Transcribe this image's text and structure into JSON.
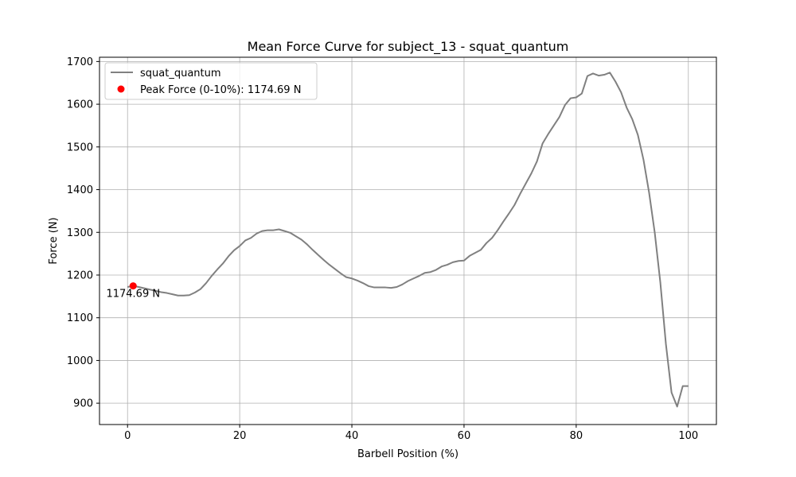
{
  "chart_data": {
    "type": "line",
    "title": "Mean Force Curve for subject_13 - squat_quantum",
    "xlabel": "Barbell Position (%)",
    "ylabel": "Force (N)",
    "xlim": [
      -5,
      105
    ],
    "ylim": [
      850,
      1710
    ],
    "xticks": [
      0,
      20,
      40,
      60,
      80,
      100
    ],
    "yticks": [
      900,
      1000,
      1100,
      1200,
      1300,
      1400,
      1500,
      1600,
      1700
    ],
    "grid": true,
    "legend_position": "top-left",
    "series": [
      {
        "name": "squat_quantum",
        "color": "#808080",
        "x": [
          0,
          1,
          2,
          3,
          4,
          5,
          6,
          7,
          8,
          9,
          10,
          11,
          12,
          13,
          14,
          15,
          16,
          17,
          18,
          19,
          20,
          21,
          22,
          23,
          24,
          25,
          26,
          27,
          28,
          29,
          30,
          31,
          32,
          33,
          34,
          35,
          36,
          37,
          38,
          39,
          40,
          41,
          42,
          43,
          44,
          45,
          46,
          47,
          48,
          49,
          50,
          51,
          52,
          53,
          54,
          55,
          56,
          57,
          58,
          59,
          60,
          61,
          62,
          63,
          64,
          65,
          66,
          67,
          68,
          69,
          70,
          71,
          72,
          73,
          74,
          75,
          76,
          77,
          78,
          79,
          80,
          81,
          82,
          83,
          84,
          85,
          86,
          87,
          88,
          89,
          90,
          91,
          92,
          93,
          94,
          95,
          96,
          97,
          98,
          99,
          100
        ],
        "y": [
          1172,
          1174.69,
          1172,
          1169,
          1166,
          1163,
          1160,
          1158,
          1155,
          1152,
          1152,
          1153,
          1159,
          1167,
          1181,
          1198,
          1213,
          1227,
          1244,
          1258,
          1268,
          1281,
          1287,
          1297,
          1303,
          1305,
          1305,
          1307,
          1303,
          1299,
          1291,
          1283,
          1272,
          1259,
          1247,
          1235,
          1224,
          1214,
          1204,
          1195,
          1192,
          1187,
          1181,
          1174,
          1171,
          1171,
          1171,
          1170,
          1172,
          1178,
          1186,
          1192,
          1198,
          1205,
          1207,
          1212,
          1220,
          1224,
          1230,
          1233,
          1234,
          1245,
          1252,
          1259,
          1275,
          1287,
          1305,
          1325,
          1344,
          1364,
          1390,
          1414,
          1438,
          1466,
          1508,
          1530,
          1550,
          1570,
          1598,
          1614,
          1616,
          1625,
          1666,
          1672,
          1667,
          1669,
          1674,
          1653,
          1628,
          1592,
          1565,
          1528,
          1470,
          1393,
          1300,
          1183,
          1038,
          925,
          892,
          940,
          940
        ]
      }
    ],
    "peak": {
      "label": "Peak Force (0-10%): 1174.69 N",
      "annotation": "1174.69 N",
      "x": 1,
      "y": 1174.69,
      "color": "#ff0000"
    }
  }
}
